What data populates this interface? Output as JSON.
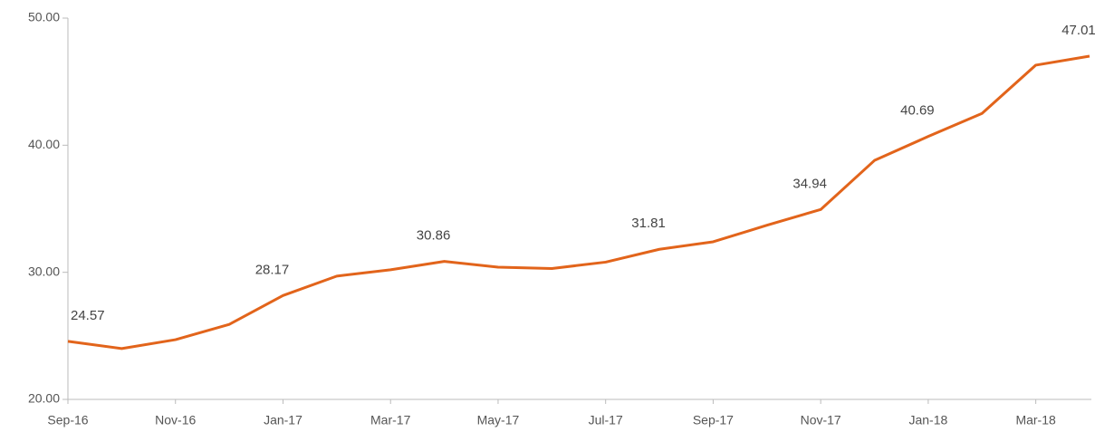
{
  "chart_data": {
    "type": "line",
    "categories": [
      "Sep-16",
      null,
      "Nov-16",
      null,
      "Jan-17",
      null,
      "Mar-17",
      null,
      "May-17",
      null,
      "Jul-17",
      null,
      "Sep-17",
      null,
      "Nov-17",
      null,
      "Jan-18",
      null,
      "Mar-18",
      null
    ],
    "series": [
      {
        "color": "#e2641b",
        "values": [
          24.57,
          24.0,
          24.7,
          25.9,
          28.17,
          29.7,
          30.2,
          30.86,
          30.4,
          30.3,
          30.8,
          31.81,
          32.4,
          33.7,
          34.94,
          38.8,
          40.69,
          42.5,
          46.3,
          47.01
        ],
        "value_labels": [
          "24.57",
          null,
          null,
          null,
          "28.17",
          null,
          null,
          "30.86",
          null,
          null,
          null,
          "31.81",
          null,
          null,
          "34.94",
          null,
          "40.69",
          null,
          null,
          "47.01"
        ]
      }
    ],
    "ylim": [
      20,
      50
    ],
    "yticks": [
      {
        "value": 20,
        "label": "20.00"
      },
      {
        "value": 30,
        "label": "30.00"
      },
      {
        "value": 40,
        "label": "40.00"
      },
      {
        "value": 50,
        "label": "50.00"
      }
    ],
    "grid": false
  }
}
